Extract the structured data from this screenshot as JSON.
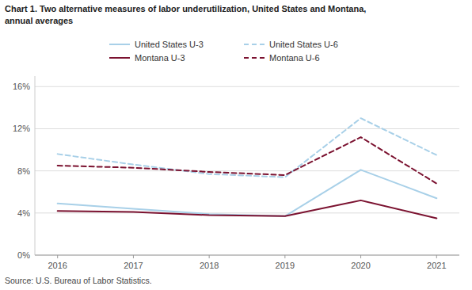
{
  "chart_data": {
    "type": "line",
    "title": "Chart 1. Two alternative measures of labor underutilization, United States and Montana,\nannual averages",
    "source": "Source: U.S. Bureau of Labor Statistics.",
    "x": [
      2016,
      2017,
      2018,
      2019,
      2020,
      2021
    ],
    "xlim": [
      2015.7,
      2021.3
    ],
    "xticks": [
      2016,
      2017,
      2018,
      2019,
      2020,
      2021
    ],
    "ylim": [
      0,
      17
    ],
    "yticks": [
      {
        "value": 0,
        "label": "0%"
      },
      {
        "value": 4,
        "label": "4%"
      },
      {
        "value": 8,
        "label": "8%"
      },
      {
        "value": 12,
        "label": "12%"
      },
      {
        "value": 16,
        "label": "16%"
      }
    ],
    "grid": true,
    "legend": "top",
    "series": [
      {
        "name": "United States U-3",
        "color": "#a8d0e8",
        "line_style": "solid",
        "values": [
          4.9,
          4.4,
          3.9,
          3.7,
          8.1,
          5.4
        ]
      },
      {
        "name": "United States U-6",
        "color": "#a8d0e8",
        "line_style": "dashed",
        "values": [
          9.6,
          8.6,
          7.7,
          7.4,
          13.0,
          9.5
        ]
      },
      {
        "name": "Montana U-3",
        "color": "#7b1230",
        "line_style": "solid",
        "values": [
          4.2,
          4.1,
          3.8,
          3.7,
          5.2,
          3.5
        ]
      },
      {
        "name": "Montana U-6",
        "color": "#7b1230",
        "line_style": "dashed",
        "values": [
          8.5,
          8.3,
          7.9,
          7.6,
          11.2,
          6.8
        ]
      }
    ]
  }
}
